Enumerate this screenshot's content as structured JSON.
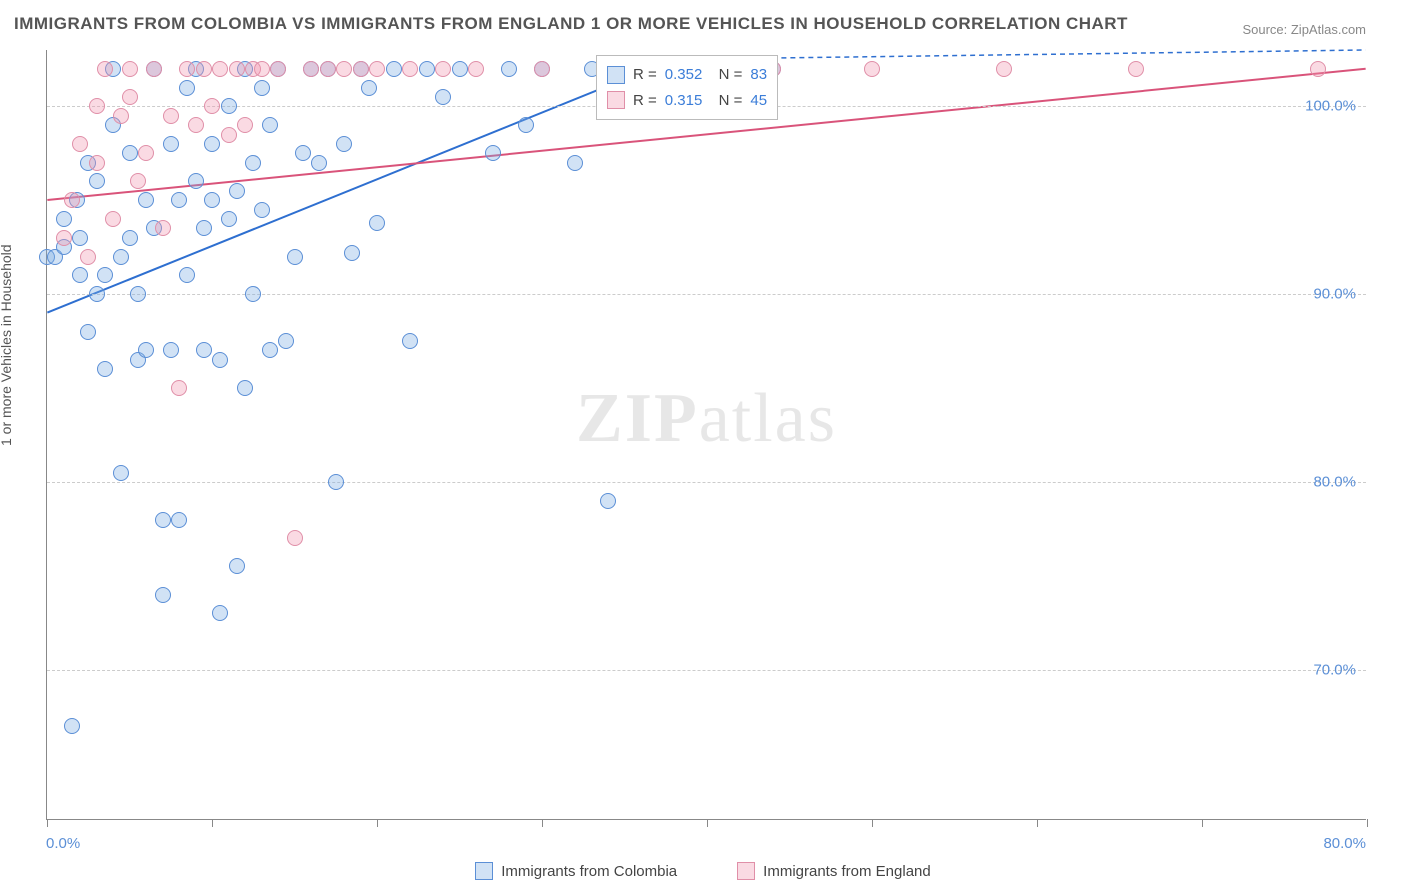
{
  "title": "IMMIGRANTS FROM COLOMBIA VS IMMIGRANTS FROM ENGLAND 1 OR MORE VEHICLES IN HOUSEHOLD CORRELATION CHART",
  "source": "Source: ZipAtlas.com",
  "ylabel": "1 or more Vehicles in Household",
  "watermark_bold": "ZIP",
  "watermark_light": "atlas",
  "chart": {
    "type": "scatter",
    "xlim": [
      0,
      80
    ],
    "ylim": [
      62,
      103
    ],
    "xtick_label_min": "0.0%",
    "xtick_label_max": "80.0%",
    "xtick_positions": [
      0,
      10,
      20,
      30,
      40,
      50,
      60,
      70,
      80
    ],
    "ytick_labels": [
      "70.0%",
      "80.0%",
      "90.0%",
      "100.0%"
    ],
    "ytick_values": [
      70,
      80,
      90,
      100
    ],
    "grid_color": "#cccccc",
    "background_color": "#ffffff",
    "axis_color": "#888888",
    "marker_radius": 8,
    "marker_stroke_width": 1.4,
    "trend_stroke_width": 2,
    "series": [
      {
        "name": "Immigrants from Colombia",
        "fill": "rgba(123,171,225,0.35)",
        "stroke": "#5b8fd6",
        "trend_color": "#2e6fd0",
        "trend": {
          "x1": 0,
          "y1": 89,
          "x2": 38,
          "y2": 102.5
        },
        "trend_dash": {
          "x1": 38,
          "y1": 102.5,
          "x2": 80,
          "y2": 103
        },
        "R": "0.352",
        "N": "83",
        "points": [
          [
            0,
            92
          ],
          [
            0.5,
            92
          ],
          [
            1,
            92.5
          ],
          [
            1,
            94
          ],
          [
            1.5,
            67
          ],
          [
            1.8,
            95
          ],
          [
            2,
            91
          ],
          [
            2,
            93
          ],
          [
            2.5,
            97
          ],
          [
            2.5,
            88
          ],
          [
            3,
            96
          ],
          [
            3,
            90
          ],
          [
            3.5,
            86
          ],
          [
            3.5,
            91
          ],
          [
            4,
            99
          ],
          [
            4,
            102
          ],
          [
            4.5,
            80.5
          ],
          [
            4.5,
            92
          ],
          [
            5,
            97.5
          ],
          [
            5,
            93
          ],
          [
            5.5,
            86.5
          ],
          [
            5.5,
            90
          ],
          [
            6,
            87
          ],
          [
            6,
            95
          ],
          [
            6.5,
            102
          ],
          [
            6.5,
            93.5
          ],
          [
            7,
            78
          ],
          [
            7,
            74
          ],
          [
            7.5,
            87
          ],
          [
            7.5,
            98
          ],
          [
            8,
            78
          ],
          [
            8,
            95
          ],
          [
            8.5,
            101
          ],
          [
            8.5,
            91
          ],
          [
            9,
            102
          ],
          [
            9,
            96
          ],
          [
            9.5,
            93.5
          ],
          [
            9.5,
            87
          ],
          [
            10,
            95
          ],
          [
            10,
            98
          ],
          [
            10.5,
            86.5
          ],
          [
            10.5,
            73
          ],
          [
            11,
            100
          ],
          [
            11,
            94
          ],
          [
            11.5,
            75.5
          ],
          [
            11.5,
            95.5
          ],
          [
            12,
            85
          ],
          [
            12,
            102
          ],
          [
            12.5,
            90
          ],
          [
            12.5,
            97
          ],
          [
            13,
            94.5
          ],
          [
            13,
            101
          ],
          [
            13.5,
            99
          ],
          [
            13.5,
            87
          ],
          [
            14,
            102
          ],
          [
            14.5,
            87.5
          ],
          [
            15,
            92
          ],
          [
            15.5,
            97.5
          ],
          [
            16,
            102
          ],
          [
            16.5,
            97
          ],
          [
            17,
            102
          ],
          [
            17.5,
            80
          ],
          [
            18,
            98
          ],
          [
            18.5,
            92.2
          ],
          [
            19,
            102
          ],
          [
            19.5,
            101
          ],
          [
            20,
            93.8
          ],
          [
            21,
            102
          ],
          [
            22,
            87.5
          ],
          [
            23,
            102
          ],
          [
            24,
            100.5
          ],
          [
            25,
            102
          ],
          [
            27,
            97.5
          ],
          [
            28,
            102
          ],
          [
            29,
            99
          ],
          [
            30,
            102
          ],
          [
            32,
            97
          ],
          [
            33,
            102
          ],
          [
            34,
            79
          ],
          [
            36,
            102
          ],
          [
            38,
            102
          ],
          [
            41,
            102
          ],
          [
            44,
            102
          ]
        ]
      },
      {
        "name": "Immigrants from England",
        "fill": "rgba(240,150,175,0.35)",
        "stroke": "#e08fa8",
        "trend_color": "#d9537a",
        "trend": {
          "x1": 0,
          "y1": 95,
          "x2": 80,
          "y2": 102
        },
        "R": "0.315",
        "N": "45",
        "points": [
          [
            1,
            93
          ],
          [
            1.5,
            95
          ],
          [
            2,
            98
          ],
          [
            2.5,
            92
          ],
          [
            3,
            97
          ],
          [
            3,
            100
          ],
          [
            3.5,
            102
          ],
          [
            4,
            94
          ],
          [
            4.5,
            99.5
          ],
          [
            5,
            102
          ],
          [
            5,
            100.5
          ],
          [
            5.5,
            96
          ],
          [
            6,
            97.5
          ],
          [
            6.5,
            102
          ],
          [
            7,
            93.5
          ],
          [
            7.5,
            99.5
          ],
          [
            8,
            85
          ],
          [
            8.5,
            102
          ],
          [
            9,
            99
          ],
          [
            9.5,
            102
          ],
          [
            10,
            100
          ],
          [
            10.5,
            102
          ],
          [
            11,
            98.5
          ],
          [
            11.5,
            102
          ],
          [
            12,
            99
          ],
          [
            12.5,
            102
          ],
          [
            13,
            102
          ],
          [
            14,
            102
          ],
          [
            15,
            77
          ],
          [
            16,
            102
          ],
          [
            17,
            102
          ],
          [
            18,
            102
          ],
          [
            19,
            102
          ],
          [
            20,
            102
          ],
          [
            22,
            102
          ],
          [
            24,
            102
          ],
          [
            26,
            102
          ],
          [
            30,
            102
          ],
          [
            34,
            102
          ],
          [
            38,
            102
          ],
          [
            44,
            102
          ],
          [
            50,
            102
          ],
          [
            58,
            102
          ],
          [
            66,
            102
          ],
          [
            77,
            102
          ]
        ]
      }
    ]
  },
  "legend_top": {
    "rows": [
      {
        "swatch_fill": "rgba(123,171,225,0.35)",
        "swatch_stroke": "#5b8fd6",
        "R": "0.352",
        "N": "83"
      },
      {
        "swatch_fill": "rgba(240,150,175,0.35)",
        "swatch_stroke": "#e08fa8",
        "R": "0.315",
        "N": "45"
      }
    ]
  },
  "bottom_legend": [
    {
      "label": "Immigrants from Colombia",
      "fill": "rgba(123,171,225,0.35)",
      "stroke": "#5b8fd6"
    },
    {
      "label": "Immigrants from England",
      "fill": "rgba(240,150,175,0.35)",
      "stroke": "#e08fa8"
    }
  ]
}
